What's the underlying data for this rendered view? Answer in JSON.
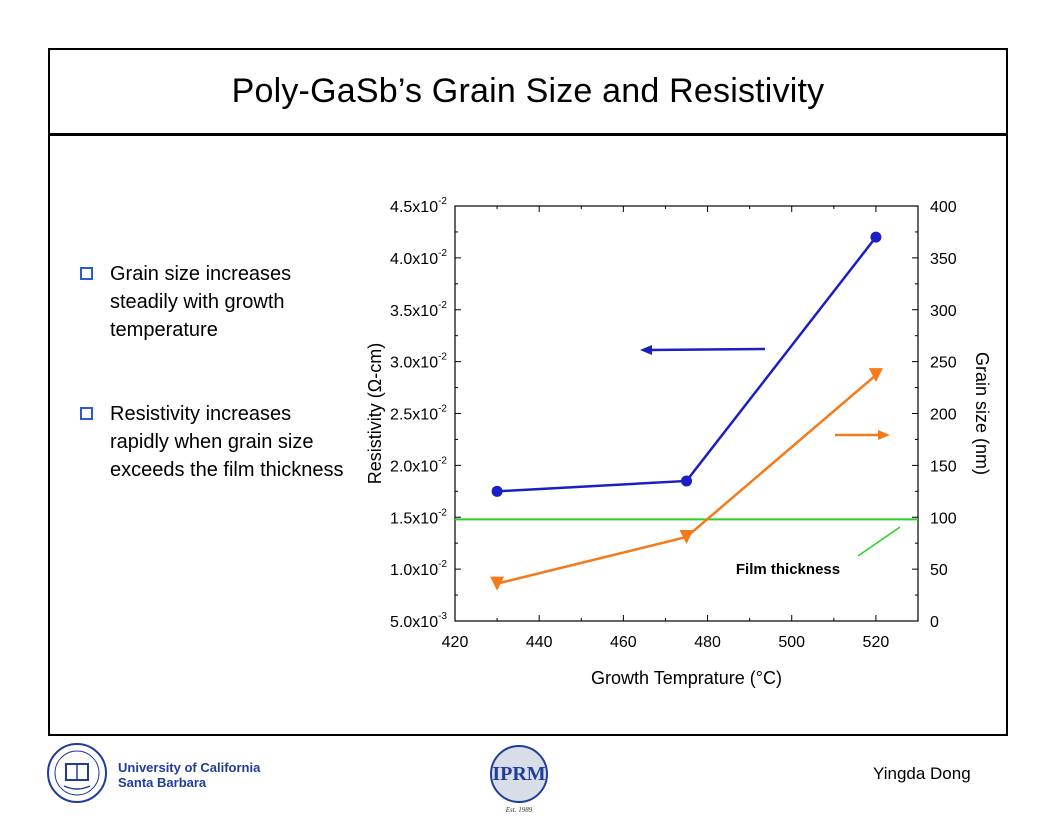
{
  "slide": {
    "title": "Poly-GaSb’s Grain Size and Resistivity",
    "bullets": [
      "Grain size increases steadily with growth temperature",
      "Resistivity increases rapidly when grain size exceeds the film thickness"
    ]
  },
  "footer": {
    "university_line1": "University of California",
    "university_line2": "Santa Barbara",
    "author": "Yingda Dong",
    "logo_text": "IPRM",
    "logo_est": "Est. 1989"
  },
  "colors": {
    "resistivity": "#1a1fc4",
    "grain": "#f47a1a",
    "film": "#2ad12a",
    "bullet": "#2a5bd7",
    "ucsb": "#1f3d99"
  },
  "chart_data": {
    "type": "line",
    "xlabel": "Growth Temprature (°C)",
    "ylabel_left": "Resistivity (Ω-cm)",
    "ylabel_right": "Grain size (nm)",
    "xlim": [
      420,
      530
    ],
    "ylim_left": [
      0.005,
      0.045
    ],
    "ylim_right": [
      0,
      400
    ],
    "x_ticks": [
      "420",
      "440",
      "460",
      "480",
      "500",
      "520"
    ],
    "y_ticks_left": [
      {
        "mant": "5.0",
        "exp": "-3"
      },
      {
        "mant": "1.0",
        "exp": "-2"
      },
      {
        "mant": "1.5",
        "exp": "-2"
      },
      {
        "mant": "2.0",
        "exp": "-2"
      },
      {
        "mant": "2.5",
        "exp": "-2"
      },
      {
        "mant": "3.0",
        "exp": "-2"
      },
      {
        "mant": "3.5",
        "exp": "-2"
      },
      {
        "mant": "4.0",
        "exp": "-2"
      },
      {
        "mant": "4.5",
        "exp": "-2"
      }
    ],
    "y_ticks_right": [
      "0",
      "50",
      "100",
      "150",
      "200",
      "250",
      "300",
      "350",
      "400"
    ],
    "series": [
      {
        "axis": "left",
        "marker": "circle",
        "x": [
          430,
          475,
          520
        ],
        "y": [
          0.0175,
          0.0185,
          0.042
        ]
      },
      {
        "axis": "right",
        "marker": "triangle-down",
        "x": [
          430,
          475,
          520
        ],
        "y": [
          36,
          81,
          237
        ]
      }
    ],
    "reference_line": {
      "axis": "right",
      "value": 98,
      "label": "Film thickness"
    }
  }
}
